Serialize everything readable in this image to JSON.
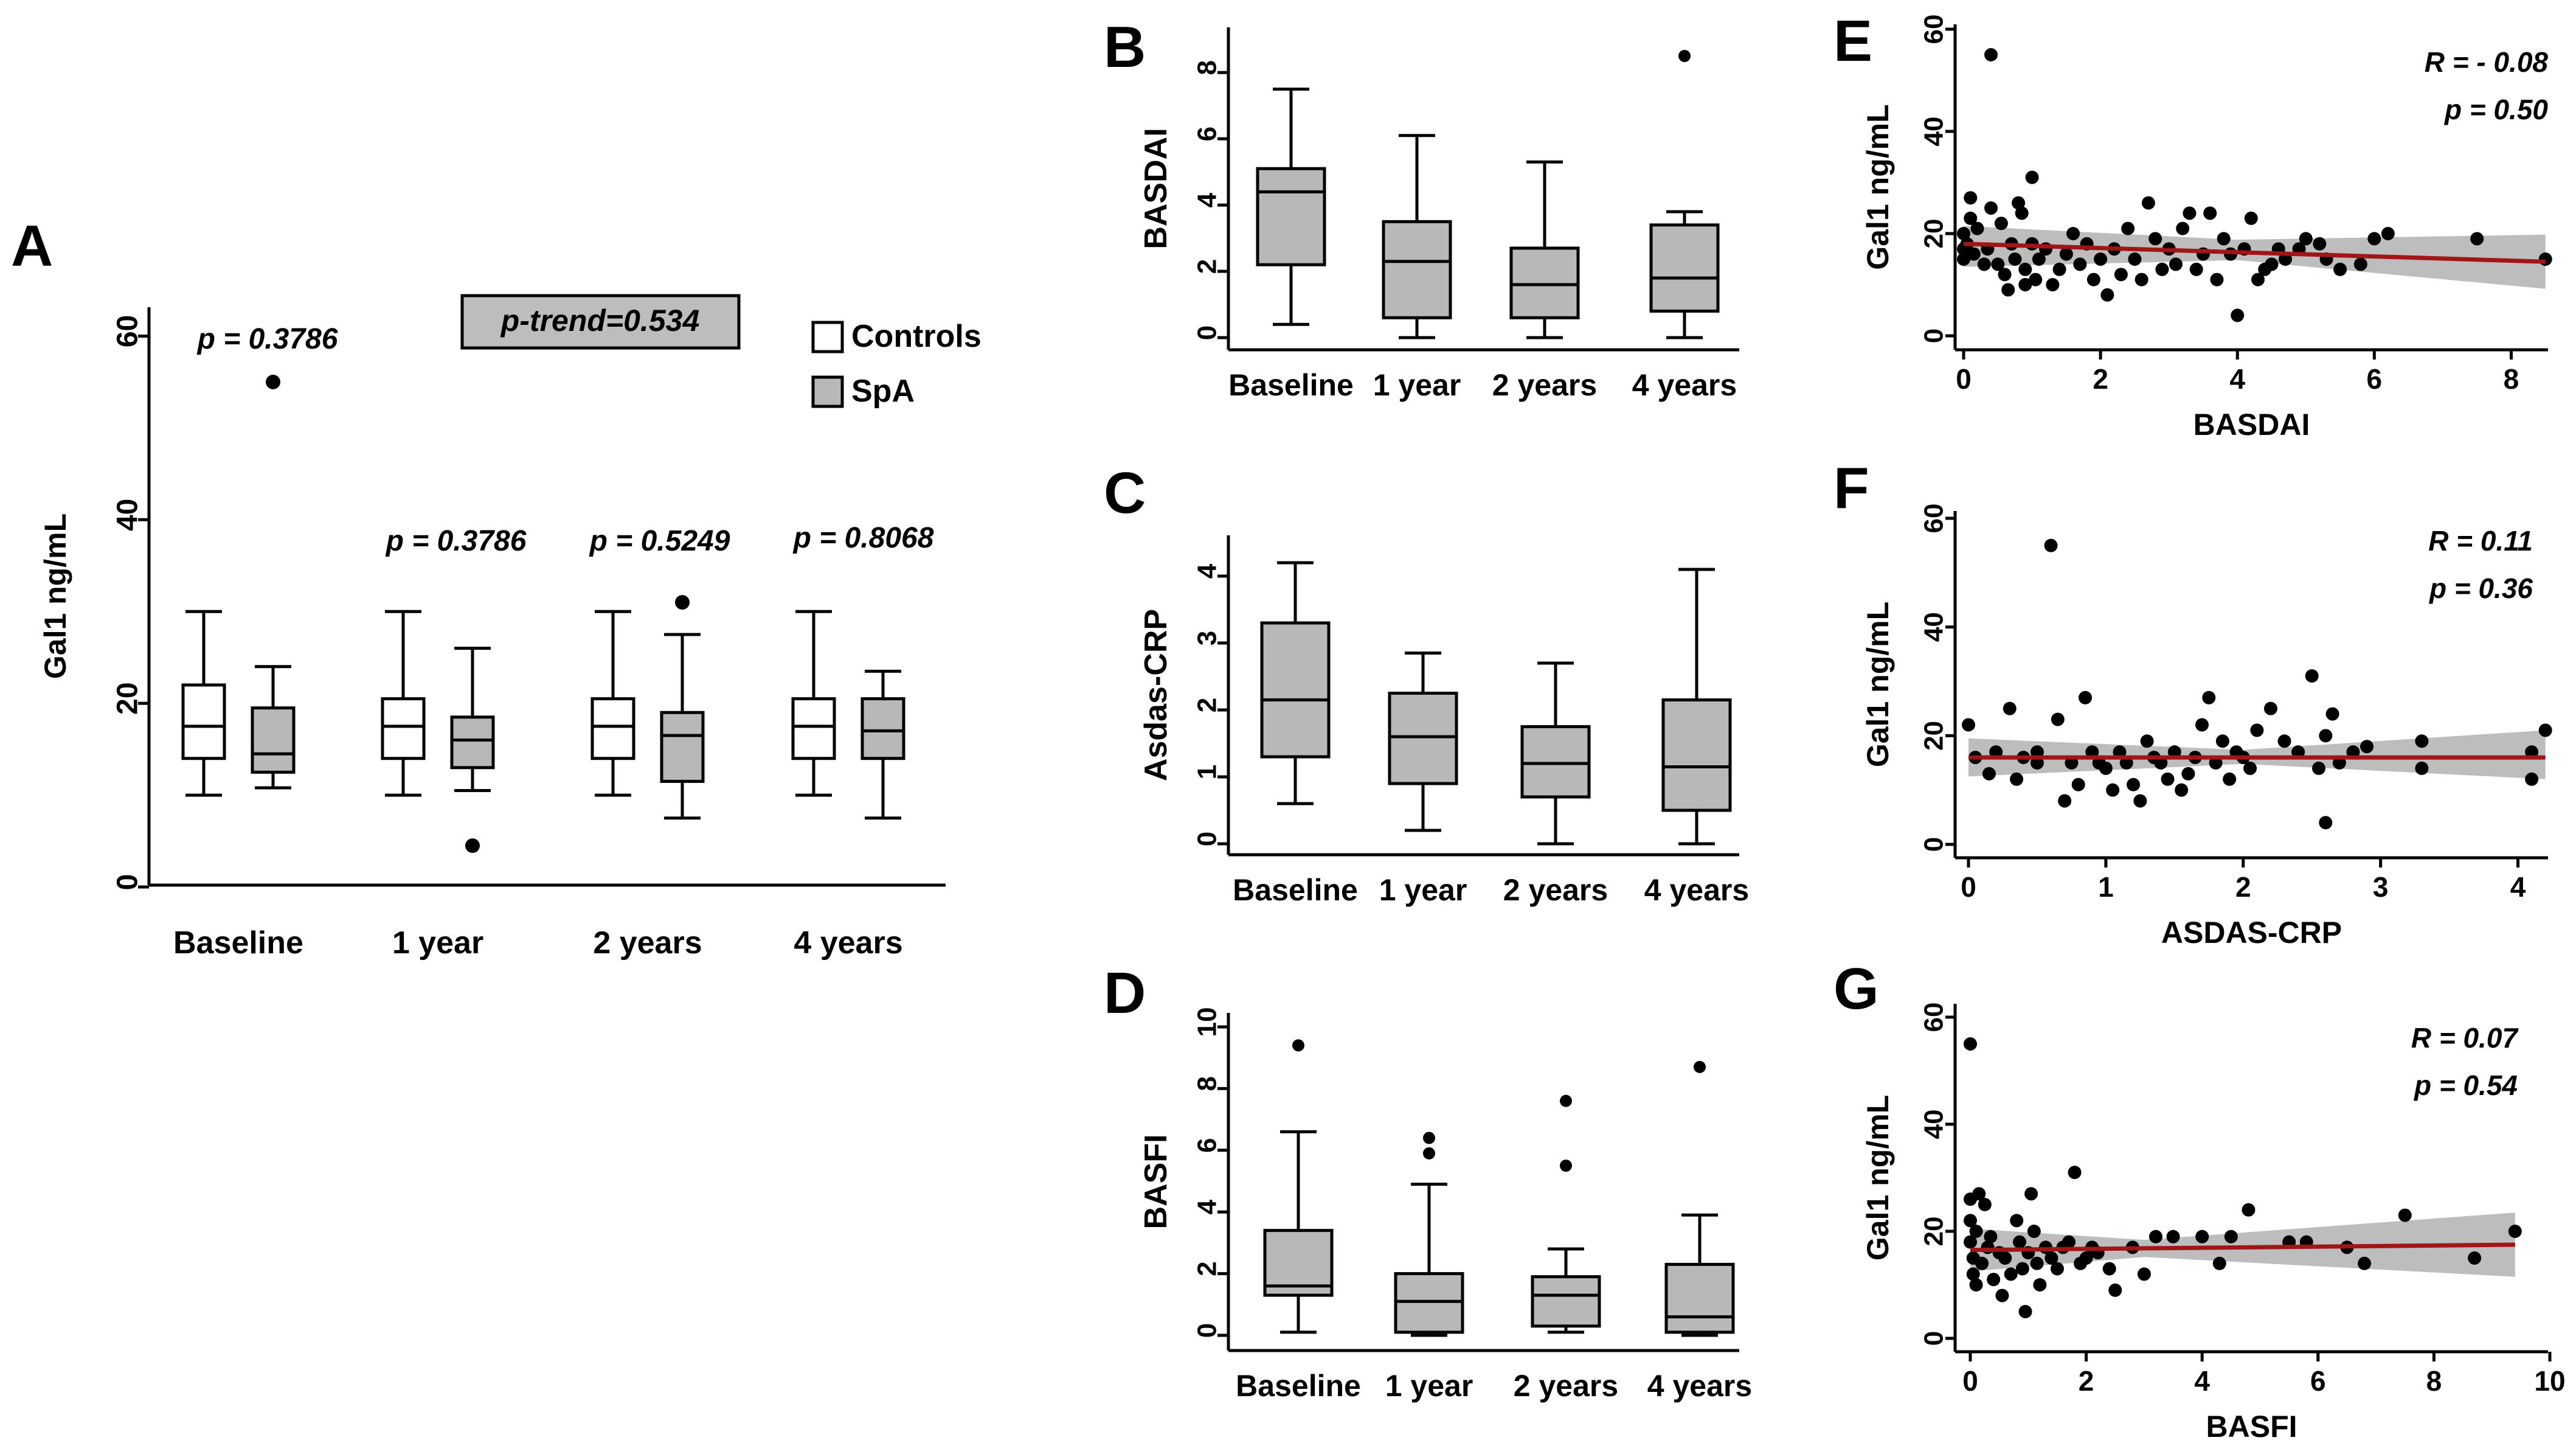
{
  "figure": {
    "panels": [
      {
        "letter": "A"
      },
      {
        "letter": "B"
      },
      {
        "letter": "C"
      },
      {
        "letter": "D"
      },
      {
        "letter": "E"
      },
      {
        "letter": "F"
      },
      {
        "letter": "G"
      }
    ]
  },
  "chart_data": [
    {
      "panel": "A",
      "type": "box",
      "ylabel": "Gal1 ng/mL",
      "ylim": [
        0,
        65
      ],
      "yticks": [
        0,
        20,
        40,
        60
      ],
      "categories": [
        "Baseline",
        "1 year",
        "2 years",
        "4 years"
      ],
      "legend": [
        {
          "label": "Controls",
          "color": "#ffffff"
        },
        {
          "label": "SpA",
          "color": "#b8b8b8"
        }
      ],
      "annotation": "p-trend=0.534",
      "pvalues": [
        "p = 0.3786",
        "p = 0.3786",
        "p = 0.5249",
        "p = 0.8068"
      ],
      "series": [
        {
          "name": "Controls",
          "color": "#ffffff",
          "boxes": [
            {
              "lw": 10,
              "q1": 14,
              "med": 17.5,
              "q3": 22,
              "uw": 30,
              "outliers": []
            },
            {
              "lw": 10,
              "q1": 14,
              "med": 17.5,
              "q3": 20.5,
              "uw": 30,
              "outliers": []
            },
            {
              "lw": 10,
              "q1": 14,
              "med": 17.5,
              "q3": 20.5,
              "uw": 30,
              "outliers": []
            },
            {
              "lw": 10,
              "q1": 14,
              "med": 17.5,
              "q3": 20.5,
              "uw": 30,
              "outliers": []
            }
          ]
        },
        {
          "name": "SpA",
          "color": "#b8b8b8",
          "boxes": [
            {
              "lw": 10.8,
              "q1": 12.5,
              "med": 14.5,
              "q3": 19.5,
              "uw": 24,
              "outliers": [
                55
              ]
            },
            {
              "lw": 10.5,
              "q1": 13,
              "med": 16,
              "q3": 18.5,
              "uw": 26,
              "outliers": [
                4.5
              ]
            },
            {
              "lw": 7.5,
              "q1": 11.5,
              "med": 16.5,
              "q3": 19,
              "uw": 27.5,
              "outliers": [
                31
              ]
            },
            {
              "lw": 7.5,
              "q1": 14,
              "med": 17,
              "q3": 20.5,
              "uw": 23.5,
              "outliers": []
            }
          ]
        }
      ]
    },
    {
      "panel": "B",
      "type": "box",
      "ylabel": "BASDAI",
      "ylim": [
        0,
        8.5
      ],
      "yticks": [
        0,
        2,
        4,
        6,
        8
      ],
      "categories": [
        "Baseline",
        "1 year",
        "2 years",
        "4 years"
      ],
      "boxes": [
        {
          "lw": 0.4,
          "q1": 2.2,
          "med": 4.4,
          "q3": 5.1,
          "uw": 7.5,
          "outliers": []
        },
        {
          "lw": 0,
          "q1": 0.6,
          "med": 2.3,
          "q3": 3.5,
          "uw": 6.1,
          "outliers": []
        },
        {
          "lw": 0,
          "q1": 0.6,
          "med": 1.6,
          "q3": 2.7,
          "uw": 5.3,
          "outliers": []
        },
        {
          "lw": 0,
          "q1": 0.8,
          "med": 1.8,
          "q3": 3.4,
          "uw": 3.8,
          "outliers": [
            8.5
          ]
        }
      ]
    },
    {
      "panel": "C",
      "type": "box",
      "ylabel": "Asdas-CRP",
      "ylim": [
        0,
        4.3
      ],
      "yticks": [
        0,
        1,
        2,
        3,
        4
      ],
      "categories": [
        "Baseline",
        "1 year",
        "2 years",
        "4 years"
      ],
      "boxes": [
        {
          "lw": 0.6,
          "q1": 1.3,
          "med": 2.15,
          "q3": 3.3,
          "uw": 4.2,
          "outliers": []
        },
        {
          "lw": 0.2,
          "q1": 0.9,
          "med": 1.6,
          "q3": 2.25,
          "uw": 2.85,
          "outliers": []
        },
        {
          "lw": 0,
          "q1": 0.7,
          "med": 1.2,
          "q3": 1.75,
          "uw": 2.7,
          "outliers": []
        },
        {
          "lw": 0,
          "q1": 0.5,
          "med": 1.15,
          "q3": 2.15,
          "uw": 4.1,
          "outliers": []
        }
      ]
    },
    {
      "panel": "D",
      "type": "box",
      "ylabel": "BASFI",
      "ylim": [
        0,
        10
      ],
      "yticks": [
        0,
        2,
        4,
        6,
        8,
        10
      ],
      "categories": [
        "Baseline",
        "1 year",
        "2 years",
        "4 years"
      ],
      "boxes": [
        {
          "lw": 0.1,
          "q1": 1.3,
          "med": 1.6,
          "q3": 3.4,
          "uw": 6.6,
          "outliers": [
            9.4
          ]
        },
        {
          "lw": 0,
          "q1": 0.1,
          "med": 1.1,
          "q3": 2.0,
          "uw": 4.9,
          "outliers": [
            5.9,
            6.4
          ]
        },
        {
          "lw": 0.1,
          "q1": 0.3,
          "med": 1.3,
          "q3": 1.9,
          "uw": 2.8,
          "outliers": [
            5.5,
            7.6
          ]
        },
        {
          "lw": 0,
          "q1": 0.1,
          "med": 0.6,
          "q3": 2.3,
          "uw": 3.9,
          "outliers": [
            8.7
          ]
        }
      ]
    },
    {
      "panel": "E",
      "type": "scatter",
      "xlabel": "BASDAI",
      "ylabel": "Gal1 ng/mL",
      "xlim": [
        0,
        8.6
      ],
      "ylim": [
        0,
        60
      ],
      "xticks": [
        0,
        2,
        4,
        6,
        8
      ],
      "yticks": [
        0,
        20,
        40,
        60
      ],
      "stats": {
        "r": "R = - 0.08",
        "p": "p = 0.50"
      },
      "fit": {
        "x0": 0,
        "y0": 18,
        "x1": 8.5,
        "y1": 14.5,
        "ci": [
          [
            0,
            13.5,
            21.5
          ],
          [
            4,
            14.8,
            18.8
          ],
          [
            8.5,
            9.2,
            19.8
          ]
        ]
      },
      "points": [
        [
          0,
          15
        ],
        [
          0,
          17
        ],
        [
          0,
          20
        ],
        [
          0.05,
          18
        ],
        [
          0.1,
          27
        ],
        [
          0.1,
          23
        ],
        [
          0.15,
          16
        ],
        [
          0.2,
          21
        ],
        [
          0.3,
          14
        ],
        [
          0.35,
          17
        ],
        [
          0.4,
          55
        ],
        [
          0.4,
          25
        ],
        [
          0.5,
          14
        ],
        [
          0.55,
          22
        ],
        [
          0.6,
          12
        ],
        [
          0.65,
          9
        ],
        [
          0.7,
          18
        ],
        [
          0.75,
          15
        ],
        [
          0.8,
          26
        ],
        [
          0.85,
          24
        ],
        [
          0.9,
          10
        ],
        [
          0.9,
          13
        ],
        [
          1,
          31
        ],
        [
          1,
          18
        ],
        [
          1.05,
          11
        ],
        [
          1.1,
          15
        ],
        [
          1.2,
          17
        ],
        [
          1.3,
          10
        ],
        [
          1.4,
          13
        ],
        [
          1.5,
          16
        ],
        [
          1.6,
          20
        ],
        [
          1.7,
          14
        ],
        [
          1.8,
          18
        ],
        [
          1.9,
          11
        ],
        [
          2,
          15
        ],
        [
          2.1,
          8
        ],
        [
          2.2,
          17
        ],
        [
          2.3,
          12
        ],
        [
          2.4,
          21
        ],
        [
          2.5,
          15
        ],
        [
          2.6,
          11
        ],
        [
          2.7,
          26
        ],
        [
          2.8,
          19
        ],
        [
          2.9,
          13
        ],
        [
          3,
          17
        ],
        [
          3.1,
          14
        ],
        [
          3.2,
          21
        ],
        [
          3.3,
          24
        ],
        [
          3.4,
          13
        ],
        [
          3.5,
          16
        ],
        [
          3.6,
          24
        ],
        [
          3.7,
          11
        ],
        [
          3.8,
          19
        ],
        [
          3.9,
          16
        ],
        [
          4,
          4
        ],
        [
          4.1,
          17
        ],
        [
          4.2,
          23
        ],
        [
          4.3,
          11
        ],
        [
          4.4,
          13
        ],
        [
          4.5,
          14
        ],
        [
          4.6,
          17
        ],
        [
          4.7,
          15
        ],
        [
          4.9,
          17
        ],
        [
          5,
          19
        ],
        [
          5.2,
          18
        ],
        [
          5.3,
          15
        ],
        [
          5.5,
          13
        ],
        [
          5.8,
          14
        ],
        [
          6,
          19
        ],
        [
          6.2,
          20
        ],
        [
          7.5,
          19
        ],
        [
          8.5,
          15
        ]
      ]
    },
    {
      "panel": "F",
      "type": "scatter",
      "xlabel": "ASDAS-CRP",
      "ylabel": "Gal1 ng/mL",
      "xlim": [
        0,
        4.25
      ],
      "ylim": [
        0,
        60
      ],
      "xticks": [
        0,
        1,
        2,
        3,
        4
      ],
      "yticks": [
        0,
        20,
        40,
        60
      ],
      "stats": {
        "r": "R = 0.11",
        "p": "p = 0.36"
      },
      "fit": {
        "x0": 0,
        "y0": 16,
        "x1": 4.2,
        "y1": 16,
        "ci": [
          [
            0,
            12.5,
            19.5
          ],
          [
            2,
            14.8,
            17.4
          ],
          [
            4.2,
            12,
            21
          ]
        ]
      },
      "points": [
        [
          0,
          22
        ],
        [
          0.05,
          16
        ],
        [
          0.15,
          13
        ],
        [
          0.2,
          17
        ],
        [
          0.3,
          25
        ],
        [
          0.35,
          12
        ],
        [
          0.4,
          16
        ],
        [
          0.5,
          17
        ],
        [
          0.5,
          15
        ],
        [
          0.6,
          55
        ],
        [
          0.65,
          23
        ],
        [
          0.7,
          8
        ],
        [
          0.75,
          15
        ],
        [
          0.8,
          11
        ],
        [
          0.85,
          27
        ],
        [
          0.9,
          17
        ],
        [
          0.95,
          15
        ],
        [
          1,
          14
        ],
        [
          1.05,
          10
        ],
        [
          1.1,
          17
        ],
        [
          1.15,
          15
        ],
        [
          1.2,
          11
        ],
        [
          1.25,
          8
        ],
        [
          1.3,
          19
        ],
        [
          1.35,
          16
        ],
        [
          1.4,
          15
        ],
        [
          1.45,
          12
        ],
        [
          1.5,
          17
        ],
        [
          1.55,
          10
        ],
        [
          1.6,
          13
        ],
        [
          1.65,
          16
        ],
        [
          1.7,
          22
        ],
        [
          1.75,
          27
        ],
        [
          1.8,
          15
        ],
        [
          1.85,
          19
        ],
        [
          1.9,
          12
        ],
        [
          1.95,
          17
        ],
        [
          2,
          16
        ],
        [
          2.05,
          14
        ],
        [
          2.1,
          21
        ],
        [
          2.2,
          25
        ],
        [
          2.3,
          19
        ],
        [
          2.4,
          17
        ],
        [
          2.5,
          31
        ],
        [
          2.55,
          14
        ],
        [
          2.6,
          20
        ],
        [
          2.65,
          24
        ],
        [
          2.7,
          15
        ],
        [
          2.8,
          17
        ],
        [
          2.9,
          18
        ],
        [
          3.3,
          19
        ],
        [
          3.3,
          14
        ],
        [
          4.1,
          17
        ],
        [
          4.1,
          12
        ],
        [
          4.2,
          21
        ],
        [
          2.6,
          4
        ]
      ]
    },
    {
      "panel": "G",
      "type": "scatter",
      "xlabel": "BASFI",
      "ylabel": "Gal1 ng/mL",
      "xlim": [
        0,
        10
      ],
      "ylim": [
        0,
        60
      ],
      "xticks": [
        0,
        2,
        4,
        6,
        8,
        10
      ],
      "yticks": [
        0,
        20,
        40,
        60
      ],
      "stats": {
        "r": "R = 0.07",
        "p": "p = 0.54"
      },
      "fit": {
        "x0": 0,
        "y0": 16.5,
        "x1": 9.4,
        "y1": 17.5,
        "ci": [
          [
            0,
            12.5,
            20.5
          ],
          [
            3,
            15.2,
            18.4
          ],
          [
            9.4,
            11.5,
            23.5
          ]
        ]
      },
      "points": [
        [
          0,
          55
        ],
        [
          0,
          26
        ],
        [
          0,
          22
        ],
        [
          0,
          18
        ],
        [
          0.05,
          15
        ],
        [
          0.05,
          12
        ],
        [
          0.1,
          20
        ],
        [
          0.1,
          10
        ],
        [
          0.15,
          27
        ],
        [
          0.2,
          14
        ],
        [
          0.25,
          25
        ],
        [
          0.3,
          17
        ],
        [
          0.35,
          19
        ],
        [
          0.4,
          11
        ],
        [
          0.5,
          16
        ],
        [
          0.55,
          8
        ],
        [
          0.6,
          15
        ],
        [
          0.7,
          12
        ],
        [
          0.8,
          22
        ],
        [
          0.85,
          18
        ],
        [
          0.9,
          13
        ],
        [
          0.95,
          5
        ],
        [
          1,
          16
        ],
        [
          1.05,
          27
        ],
        [
          1.1,
          20
        ],
        [
          1.15,
          14
        ],
        [
          1.2,
          10
        ],
        [
          1.3,
          17
        ],
        [
          1.4,
          15
        ],
        [
          1.5,
          13
        ],
        [
          1.6,
          17
        ],
        [
          1.7,
          18
        ],
        [
          1.8,
          31
        ],
        [
          1.9,
          14
        ],
        [
          2,
          15
        ],
        [
          2.1,
          17
        ],
        [
          2.2,
          16
        ],
        [
          2.4,
          13
        ],
        [
          2.5,
          9
        ],
        [
          2.8,
          17
        ],
        [
          3,
          12
        ],
        [
          3.2,
          19
        ],
        [
          3.5,
          19
        ],
        [
          4,
          19
        ],
        [
          4.3,
          14
        ],
        [
          4.5,
          19
        ],
        [
          4.8,
          24
        ],
        [
          5.5,
          18
        ],
        [
          5.8,
          18
        ],
        [
          6.5,
          17
        ],
        [
          6.8,
          14
        ],
        [
          7.5,
          23
        ],
        [
          8.7,
          15
        ],
        [
          9.4,
          20
        ]
      ]
    }
  ]
}
